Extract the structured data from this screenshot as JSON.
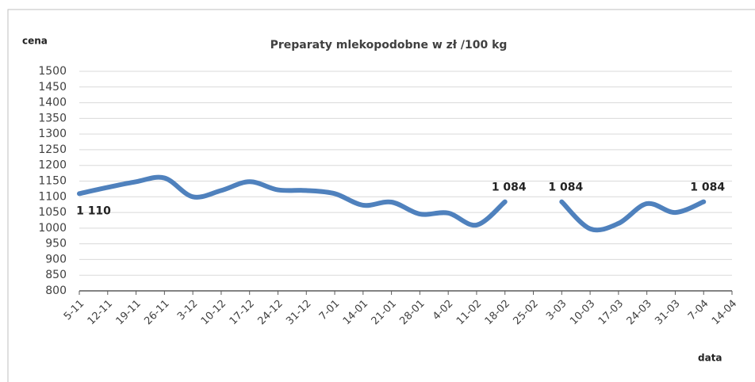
{
  "chart_data": {
    "type": "line",
    "title": "Preparaty mlekopodobne w zł /100 kg",
    "y_label": "cena",
    "x_label": "data",
    "categories": [
      "5-11",
      "12-11",
      "19-11",
      "26-11",
      "3-12",
      "10-12",
      "17-12",
      "24-12",
      "31-12",
      "7-01",
      "14-01",
      "21-01",
      "28-01",
      "4-02",
      "11-02",
      "18-02",
      "25-02",
      "3-03",
      "10-03",
      "17-03",
      "24-03",
      "31-03",
      "7-04",
      "14-04"
    ],
    "series": [
      {
        "name": "Preparaty mlekopodobne",
        "color": "#4f81bd",
        "values": [
          1110,
          1130,
          1148,
          1160,
          1100,
          1120,
          1148,
          1122,
          1120,
          1110,
          1073,
          1083,
          1045,
          1048,
          1010,
          1084,
          null,
          1084,
          998,
          1015,
          1078,
          1050,
          1084,
          null
        ],
        "value_labels": [
          "1 110",
          null,
          null,
          null,
          null,
          null,
          null,
          null,
          null,
          null,
          null,
          null,
          null,
          null,
          null,
          "1 084",
          null,
          "1 084",
          null,
          null,
          null,
          null,
          "1 084",
          null
        ]
      }
    ],
    "ylim": [
      800,
      1500
    ],
    "yticks": [
      800,
      850,
      900,
      950,
      1000,
      1050,
      1100,
      1150,
      1200,
      1250,
      1300,
      1350,
      1400,
      1450,
      1500
    ],
    "grid": true
  }
}
